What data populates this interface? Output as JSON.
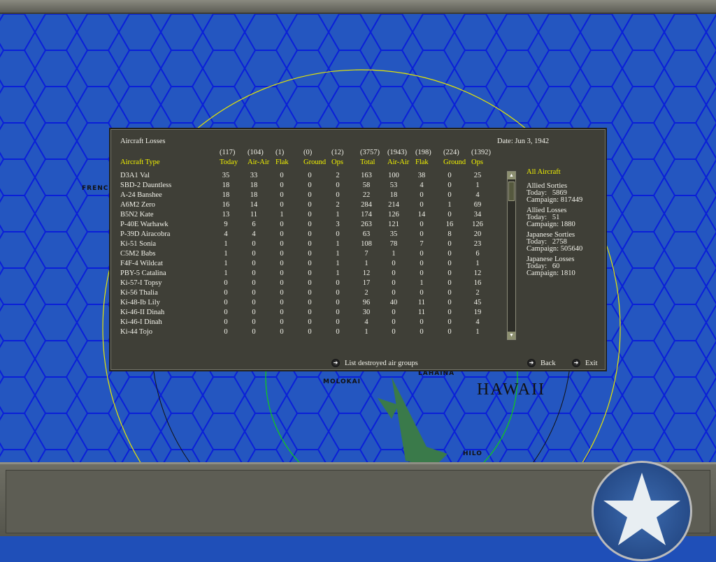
{
  "map": {
    "labels": [
      "FRENCH",
      "MOLOKAI",
      "LAHAINA",
      "HAWAII",
      "HILO"
    ]
  },
  "dialog": {
    "title": "Aircraft Losses",
    "date": "Date: Jun 3, 1942",
    "type_header": "Aircraft Type",
    "columns": [
      {
        "total": "(117)",
        "label": "Today"
      },
      {
        "total": "(104)",
        "label": "Air-Air"
      },
      {
        "total": "(1)",
        "label": "Flak"
      },
      {
        "total": "(0)",
        "label": "Ground"
      },
      {
        "total": "(12)",
        "label": "Ops"
      },
      {
        "total": "(3757)",
        "label": "Total"
      },
      {
        "total": "(1943)",
        "label": "Air-Air"
      },
      {
        "total": "(198)",
        "label": "Flak"
      },
      {
        "total": "(224)",
        "label": "Ground"
      },
      {
        "total": "(1392)",
        "label": "Ops"
      }
    ],
    "rows": [
      {
        "type": "D3A1 Val",
        "v": [
          "35",
          "33",
          "0",
          "0",
          "2",
          "163",
          "100",
          "38",
          "0",
          "25"
        ]
      },
      {
        "type": "SBD-2 Dauntless",
        "v": [
          "18",
          "18",
          "0",
          "0",
          "0",
          "58",
          "53",
          "4",
          "0",
          "1"
        ]
      },
      {
        "type": "A-24 Banshee",
        "v": [
          "18",
          "18",
          "0",
          "0",
          "0",
          "22",
          "18",
          "0",
          "0",
          "4"
        ]
      },
      {
        "type": "A6M2 Zero",
        "v": [
          "16",
          "14",
          "0",
          "0",
          "2",
          "284",
          "214",
          "0",
          "1",
          "69"
        ]
      },
      {
        "type": "B5N2 Kate",
        "v": [
          "13",
          "11",
          "1",
          "0",
          "1",
          "174",
          "126",
          "14",
          "0",
          "34"
        ]
      },
      {
        "type": "P-40E Warhawk",
        "v": [
          "9",
          "6",
          "0",
          "0",
          "3",
          "263",
          "121",
          "0",
          "16",
          "126"
        ]
      },
      {
        "type": "P-39D Airacobra",
        "v": [
          "4",
          "4",
          "0",
          "0",
          "0",
          "63",
          "35",
          "0",
          "8",
          "20"
        ]
      },
      {
        "type": "Ki-51 Sonia",
        "v": [
          "1",
          "0",
          "0",
          "0",
          "1",
          "108",
          "78",
          "7",
          "0",
          "23"
        ]
      },
      {
        "type": "C5M2 Babs",
        "v": [
          "1",
          "0",
          "0",
          "0",
          "1",
          "7",
          "1",
          "0",
          "0",
          "6"
        ]
      },
      {
        "type": "F4F-4 Wildcat",
        "v": [
          "1",
          "0",
          "0",
          "0",
          "1",
          "1",
          "0",
          "0",
          "0",
          "1"
        ]
      },
      {
        "type": "PBY-5 Catalina",
        "v": [
          "1",
          "0",
          "0",
          "0",
          "1",
          "12",
          "0",
          "0",
          "0",
          "12"
        ]
      },
      {
        "type": "Ki-57-I Topsy",
        "v": [
          "0",
          "0",
          "0",
          "0",
          "0",
          "17",
          "0",
          "1",
          "0",
          "16"
        ]
      },
      {
        "type": "Ki-56 Thalia",
        "v": [
          "0",
          "0",
          "0",
          "0",
          "0",
          "2",
          "0",
          "0",
          "0",
          "2"
        ]
      },
      {
        "type": "Ki-48-Ib Lily",
        "v": [
          "0",
          "0",
          "0",
          "0",
          "0",
          "96",
          "40",
          "11",
          "0",
          "45"
        ]
      },
      {
        "type": "Ki-46-II Dinah",
        "v": [
          "0",
          "0",
          "0",
          "0",
          "0",
          "30",
          "0",
          "11",
          "0",
          "19"
        ]
      },
      {
        "type": "Ki-46-I Dinah",
        "v": [
          "0",
          "0",
          "0",
          "0",
          "0",
          "4",
          "0",
          "0",
          "0",
          "4"
        ]
      },
      {
        "type": "Ki-44 Tojo",
        "v": [
          "0",
          "0",
          "0",
          "0",
          "0",
          "1",
          "0",
          "0",
          "0",
          "1"
        ]
      }
    ],
    "filter": "All Aircraft",
    "stats": [
      {
        "title": "Allied Sorties",
        "today": "Today:   5869",
        "campaign": "Campaign: 817449"
      },
      {
        "title": "Allied Losses",
        "today": "Today:   51",
        "campaign": "Campaign: 1880"
      },
      {
        "title": "Japanese Sorties",
        "today": "Today:   2758",
        "campaign": "Campaign: 505640"
      },
      {
        "title": "Japanese Losses",
        "today": "Today:   60",
        "campaign": "Campaign: 1810"
      }
    ],
    "buttons": {
      "list": "List destroyed air groups",
      "back": "Back",
      "exit": "Exit"
    }
  }
}
